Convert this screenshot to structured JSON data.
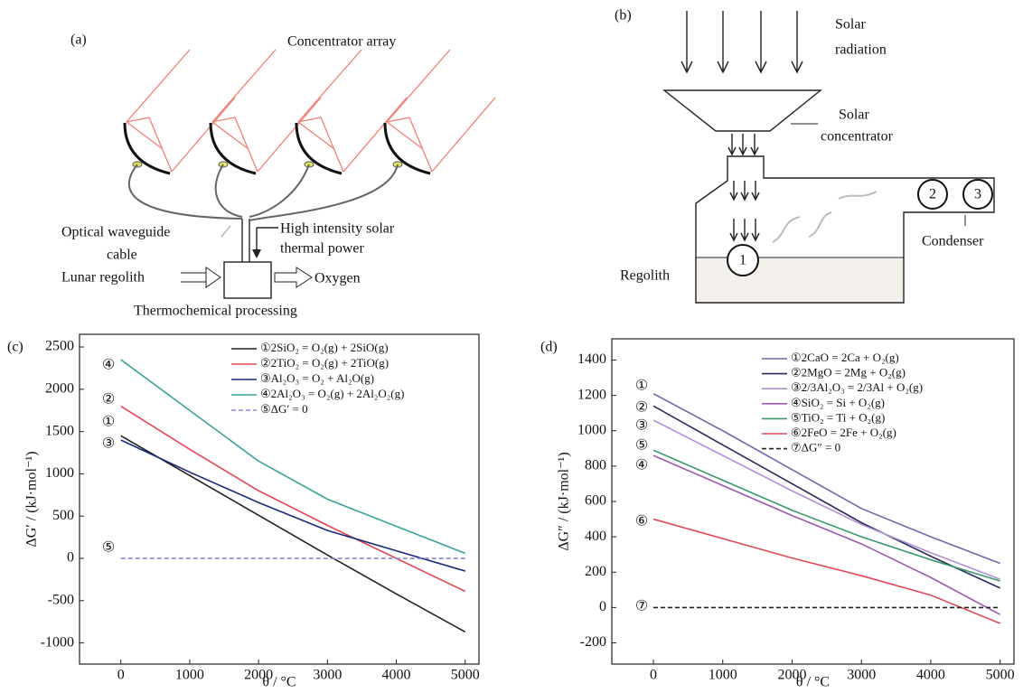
{
  "figure": {
    "panel_a": {
      "label": "(a)",
      "concentrator": "Concentrator array",
      "waveguide": [
        "Optical waveguide",
        "cable"
      ],
      "power": [
        "High intensity solar",
        "thermal power"
      ],
      "input": "Lunar regolith",
      "output": "Oxygen",
      "process": "Thermochemical processing"
    },
    "panel_b": {
      "label": "(b)",
      "radiation": [
        "Solar",
        "radiation"
      ],
      "concentrator": [
        "Solar",
        "concentrator"
      ],
      "condenser": "Condenser",
      "regolith": "Regolith",
      "markers": [
        "1",
        "2",
        "3"
      ]
    }
  },
  "chart_data": [
    {
      "type": "line",
      "panel_label": "(c)",
      "x_label": "θ / °C",
      "y_label": "ΔG′ / (kJ·mol⁻¹)",
      "x": [
        0,
        1000,
        2000,
        3000,
        4000,
        5000
      ],
      "xlim": [
        -600,
        5200
      ],
      "ylim": [
        -1250,
        2650
      ],
      "xticks": [
        0,
        1000,
        2000,
        3000,
        4000,
        5000
      ],
      "yticks": [
        -1000,
        -500,
        0,
        500,
        1000,
        1500,
        2000,
        2500
      ],
      "series": [
        {
          "name": "①2SiO₂ = O₂(g) + 2SiO(g)",
          "color": "#222222",
          "dash": false,
          "values": [
            1450,
            980,
            510,
            40,
            -420,
            -870
          ]
        },
        {
          "name": "②2TiO₂ = O₂(g) + 2TiO(g)",
          "color": "#e04858",
          "dash": false,
          "values": [
            1800,
            1290,
            800,
            390,
            0,
            -390
          ]
        },
        {
          "name": "③Al₂O₃ = O₂ + Al₂O(g)",
          "color": "#1a2a7a",
          "dash": false,
          "values": [
            1400,
            1020,
            660,
            330,
            90,
            -150
          ]
        },
        {
          "name": "④2Al₂O₃ = O₂(g) + 2Al₂O₂(g)",
          "color": "#3aa39a",
          "dash": false,
          "values": [
            2350,
            1750,
            1150,
            700,
            380,
            60
          ]
        },
        {
          "name": "⑤ΔG′ = 0",
          "color": "#8888dd",
          "dash": true,
          "values": [
            0,
            0,
            0,
            0,
            0,
            0
          ]
        }
      ],
      "annotations": [
        "④",
        "②",
        "①",
        "③",
        "⑤"
      ]
    },
    {
      "type": "line",
      "panel_label": "(d)",
      "x_label": "θ / °C",
      "y_label": "ΔG″ / (kJ·mol⁻¹)",
      "x": [
        0,
        1000,
        2000,
        3000,
        4000,
        5000
      ],
      "xlim": [
        -600,
        5200
      ],
      "ylim": [
        -320,
        1520
      ],
      "xticks": [
        0,
        1000,
        2000,
        3000,
        4000,
        5000
      ],
      "yticks": [
        -200,
        0,
        200,
        400,
        600,
        800,
        1000,
        1200,
        1400
      ],
      "series": [
        {
          "name": "①2CaO = 2Ca + O₂(g)",
          "color": "#6a6aa8",
          "dash": false,
          "values": [
            1210,
            1000,
            780,
            560,
            400,
            250
          ]
        },
        {
          "name": "②2MgO = 2Mg + O₂(g)",
          "color": "#2a2a5a",
          "dash": false,
          "values": [
            1140,
            920,
            700,
            480,
            290,
            110
          ]
        },
        {
          "name": "③2/3Al₂O₃ = 2/3Al + O₂(g)",
          "color": "#b090d8",
          "dash": false,
          "values": [
            1060,
            860,
            660,
            470,
            310,
            160
          ]
        },
        {
          "name": "④SiO₂ = Si + O₂(g)",
          "color": "#9a5ab0",
          "dash": false,
          "values": [
            860,
            690,
            520,
            360,
            170,
            -40
          ]
        },
        {
          "name": "⑤TiO₂ = Ti + O₂(g)",
          "color": "#3a9a6a",
          "dash": false,
          "values": [
            890,
            720,
            550,
            400,
            270,
            150
          ]
        },
        {
          "name": "⑥2FeO = 2Fe + O₂(g)",
          "color": "#e04858",
          "dash": false,
          "values": [
            500,
            390,
            280,
            180,
            70,
            -90
          ]
        },
        {
          "name": "⑦ΔG″ = 0",
          "color": "#222222",
          "dash": true,
          "values": [
            0,
            0,
            0,
            0,
            0,
            0
          ]
        }
      ],
      "annotations": [
        "①",
        "②",
        "③",
        "⑤",
        "④",
        "⑥",
        "⑦"
      ]
    }
  ]
}
